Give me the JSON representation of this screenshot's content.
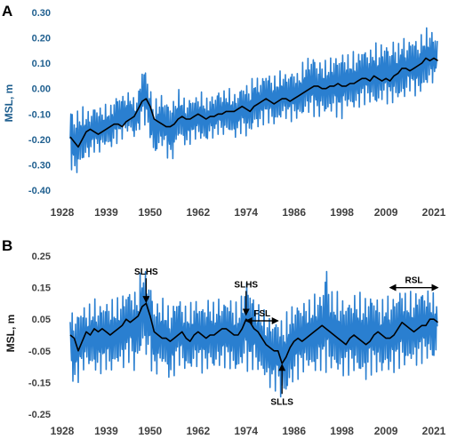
{
  "chart_data": [
    {
      "panel": "A",
      "type": "line",
      "title": "",
      "xlabel": "",
      "ylabel": "MSL, m",
      "xlim": [
        1928,
        2023
      ],
      "ylim": [
        -0.4,
        0.3
      ],
      "xticks": [
        "1928",
        "1939",
        "1950",
        "1962",
        "1974",
        "1986",
        "1998",
        "2009",
        "2021"
      ],
      "yticks": [
        "0.30",
        "0.20",
        "0.10",
        "0.00",
        "-0.10",
        "-0.20",
        "-0.30",
        "-0.40"
      ],
      "grid": false,
      "colors": {
        "monthly": "#2a7fd0",
        "smoothed": "#000000",
        "axis_text": "#1f5f8f"
      },
      "series": [
        {
          "role": "monthly",
          "x": [
            1930,
            1931,
            1932,
            1933,
            1934,
            1935,
            1936,
            1937,
            1938,
            1939,
            1940,
            1941,
            1942,
            1943,
            1944,
            1945,
            1946,
            1947,
            1948,
            1949,
            1950,
            1951,
            1952,
            1953,
            1954,
            1955,
            1956,
            1957,
            1958,
            1959,
            1960,
            1961,
            1962,
            1963,
            1964,
            1965,
            1966,
            1967,
            1968,
            1969,
            1970,
            1971,
            1972,
            1973,
            1974,
            1975,
            1976,
            1977,
            1978,
            1979,
            1980,
            1981,
            1982,
            1983,
            1984,
            1985,
            1986,
            1987,
            1988,
            1989,
            1990,
            1991,
            1992,
            1993,
            1994,
            1995,
            1996,
            1997,
            1998,
            1999,
            2000,
            2001,
            2002,
            2003,
            2004,
            2005,
            2006,
            2007,
            2008,
            2009,
            2010,
            2011,
            2012,
            2013,
            2014,
            2015,
            2016,
            2017,
            2018,
            2019,
            2020,
            2021,
            2022
          ],
          "min": [
            -0.3,
            -0.36,
            -0.33,
            -0.3,
            -0.28,
            -0.27,
            -0.25,
            -0.26,
            -0.24,
            -0.23,
            -0.24,
            -0.23,
            -0.21,
            -0.2,
            -0.18,
            -0.17,
            -0.2,
            -0.18,
            -0.13,
            -0.15,
            -0.2,
            -0.28,
            -0.25,
            -0.23,
            -0.26,
            -0.3,
            -0.27,
            -0.2,
            -0.21,
            -0.24,
            -0.22,
            -0.2,
            -0.2,
            -0.21,
            -0.22,
            -0.19,
            -0.2,
            -0.18,
            -0.19,
            -0.18,
            -0.18,
            -0.2,
            -0.19,
            -0.17,
            -0.19,
            -0.19,
            -0.15,
            -0.16,
            -0.15,
            -0.13,
            -0.14,
            -0.15,
            -0.14,
            -0.12,
            -0.12,
            -0.13,
            -0.13,
            -0.12,
            -0.12,
            -0.1,
            -0.1,
            -0.11,
            -0.12,
            -0.1,
            -0.11,
            -0.1,
            -0.1,
            -0.12,
            -0.12,
            -0.08,
            -0.08,
            -0.09,
            -0.08,
            -0.07,
            -0.06,
            -0.06,
            -0.07,
            -0.08,
            -0.05,
            -0.06,
            -0.06,
            -0.06,
            -0.05,
            -0.05,
            -0.04,
            -0.01,
            -0.03,
            -0.03,
            -0.02,
            0.0,
            0.02,
            0.02,
            0.03
          ],
          "max": [
            -0.06,
            -0.1,
            -0.08,
            -0.07,
            -0.08,
            -0.09,
            -0.06,
            -0.07,
            -0.07,
            -0.06,
            -0.07,
            -0.03,
            -0.02,
            -0.02,
            -0.02,
            -0.01,
            -0.04,
            -0.02,
            0.09,
            0.08,
            0.0,
            -0.05,
            -0.03,
            -0.02,
            -0.04,
            -0.05,
            -0.04,
            0.0,
            -0.02,
            -0.05,
            -0.03,
            -0.03,
            -0.02,
            -0.01,
            -0.04,
            -0.02,
            -0.03,
            0.0,
            -0.01,
            0.0,
            0.0,
            -0.02,
            -0.01,
            0.02,
            0.02,
            0.02,
            0.06,
            0.04,
            0.05,
            0.07,
            0.06,
            0.05,
            0.06,
            0.08,
            0.06,
            0.07,
            0.08,
            0.06,
            0.1,
            0.12,
            0.13,
            0.14,
            0.1,
            0.12,
            0.11,
            0.12,
            0.14,
            0.13,
            0.15,
            0.14,
            0.13,
            0.15,
            0.14,
            0.17,
            0.16,
            0.15,
            0.19,
            0.17,
            0.18,
            0.19,
            0.16,
            0.2,
            0.17,
            0.22,
            0.18,
            0.2,
            0.21,
            0.19,
            0.22,
            0.24,
            0.24,
            0.22,
            0.21
          ]
        },
        {
          "role": "smoothed",
          "x": [
            1930,
            1931,
            1932,
            1933,
            1934,
            1935,
            1936,
            1937,
            1938,
            1939,
            1940,
            1941,
            1942,
            1943,
            1944,
            1945,
            1946,
            1947,
            1948,
            1949,
            1950,
            1951,
            1952,
            1953,
            1954,
            1955,
            1956,
            1957,
            1958,
            1959,
            1960,
            1961,
            1962,
            1963,
            1964,
            1965,
            1966,
            1967,
            1968,
            1969,
            1970,
            1971,
            1972,
            1973,
            1974,
            1975,
            1976,
            1977,
            1978,
            1979,
            1980,
            1981,
            1982,
            1983,
            1984,
            1985,
            1986,
            1987,
            1988,
            1989,
            1990,
            1991,
            1992,
            1993,
            1994,
            1995,
            1996,
            1997,
            1998,
            1999,
            2000,
            2001,
            2002,
            2003,
            2004,
            2005,
            2006,
            2007,
            2008,
            2009,
            2010,
            2011,
            2012,
            2013,
            2014,
            2015,
            2016,
            2017,
            2018,
            2019,
            2020,
            2021,
            2022
          ],
          "values": [
            -0.19,
            -0.21,
            -0.23,
            -0.2,
            -0.17,
            -0.16,
            -0.17,
            -0.18,
            -0.17,
            -0.16,
            -0.15,
            -0.14,
            -0.14,
            -0.15,
            -0.13,
            -0.12,
            -0.11,
            -0.08,
            -0.05,
            -0.04,
            -0.07,
            -0.12,
            -0.13,
            -0.14,
            -0.15,
            -0.15,
            -0.14,
            -0.12,
            -0.11,
            -0.12,
            -0.12,
            -0.11,
            -0.1,
            -0.11,
            -0.12,
            -0.11,
            -0.11,
            -0.1,
            -0.1,
            -0.09,
            -0.09,
            -0.09,
            -0.08,
            -0.07,
            -0.08,
            -0.09,
            -0.07,
            -0.06,
            -0.05,
            -0.04,
            -0.05,
            -0.06,
            -0.05,
            -0.04,
            -0.04,
            -0.05,
            -0.04,
            -0.03,
            -0.02,
            -0.01,
            0.0,
            0.01,
            0.01,
            0.0,
            0.0,
            0.01,
            0.01,
            0.02,
            0.01,
            0.01,
            0.02,
            0.02,
            0.03,
            0.04,
            0.04,
            0.03,
            0.05,
            0.04,
            0.03,
            0.04,
            0.03,
            0.05,
            0.06,
            0.08,
            0.08,
            0.07,
            0.08,
            0.09,
            0.1,
            0.12,
            0.11,
            0.12,
            0.11
          ]
        }
      ]
    },
    {
      "panel": "B",
      "type": "line",
      "title": "",
      "xlabel": "",
      "ylabel": "MSL, m",
      "xlim": [
        1928,
        2023
      ],
      "ylim": [
        -0.25,
        0.25
      ],
      "xticks": [
        "1928",
        "1939",
        "1950",
        "1962",
        "1974",
        "1986",
        "1998",
        "2009",
        "2021"
      ],
      "yticks": [
        "0.25",
        "0.15",
        "0.05",
        "-0.05",
        "-0.15",
        "-0.25"
      ],
      "grid": false,
      "colors": {
        "monthly": "#2a7fd0",
        "smoothed": "#000000",
        "axis_text": "#404040"
      },
      "series": [
        {
          "role": "monthly",
          "x": [
            1930,
            1931,
            1932,
            1933,
            1934,
            1935,
            1936,
            1937,
            1938,
            1939,
            1940,
            1941,
            1942,
            1943,
            1944,
            1945,
            1946,
            1947,
            1948,
            1949,
            1950,
            1951,
            1952,
            1953,
            1954,
            1955,
            1956,
            1957,
            1958,
            1959,
            1960,
            1961,
            1962,
            1963,
            1964,
            1965,
            1966,
            1967,
            1968,
            1969,
            1970,
            1971,
            1972,
            1973,
            1974,
            1975,
            1976,
            1977,
            1978,
            1979,
            1980,
            1981,
            1982,
            1983,
            1984,
            1985,
            1986,
            1987,
            1988,
            1989,
            1990,
            1991,
            1992,
            1993,
            1994,
            1995,
            1996,
            1997,
            1998,
            1999,
            2000,
            2001,
            2002,
            2003,
            2004,
            2005,
            2006,
            2007,
            2008,
            2009,
            2010,
            2011,
            2012,
            2013,
            2014,
            2015,
            2016,
            2017,
            2018,
            2019,
            2020,
            2021,
            2022
          ],
          "min": [
            -0.1,
            -0.18,
            -0.15,
            -0.12,
            -0.1,
            -0.11,
            -0.12,
            -0.13,
            -0.12,
            -0.11,
            -0.13,
            -0.11,
            -0.1,
            -0.11,
            -0.1,
            -0.08,
            -0.12,
            -0.09,
            -0.05,
            -0.07,
            -0.1,
            -0.14,
            -0.12,
            -0.1,
            -0.12,
            -0.16,
            -0.13,
            -0.09,
            -0.11,
            -0.12,
            -0.12,
            -0.11,
            -0.1,
            -0.12,
            -0.12,
            -0.1,
            -0.12,
            -0.1,
            -0.11,
            -0.1,
            -0.11,
            -0.12,
            -0.13,
            -0.1,
            -0.11,
            -0.13,
            -0.1,
            -0.12,
            -0.13,
            -0.15,
            -0.17,
            -0.18,
            -0.17,
            -0.22,
            -0.2,
            -0.17,
            -0.15,
            -0.14,
            -0.12,
            -0.12,
            -0.11,
            -0.13,
            -0.12,
            -0.11,
            -0.12,
            -0.12,
            -0.11,
            -0.13,
            -0.14,
            -0.12,
            -0.13,
            -0.12,
            -0.13,
            -0.14,
            -0.15,
            -0.13,
            -0.12,
            -0.12,
            -0.13,
            -0.11,
            -0.13,
            -0.12,
            -0.11,
            -0.1,
            -0.11,
            -0.09,
            -0.1,
            -0.1,
            -0.09,
            -0.08,
            -0.08,
            -0.09,
            -0.07
          ],
          "max": [
            0.08,
            0.07,
            0.08,
            0.1,
            0.09,
            0.1,
            0.12,
            0.1,
            0.11,
            0.11,
            0.12,
            0.11,
            0.12,
            0.13,
            0.15,
            0.15,
            0.14,
            0.15,
            0.24,
            0.2,
            0.18,
            0.1,
            0.11,
            0.12,
            0.1,
            0.09,
            0.11,
            0.13,
            0.11,
            0.09,
            0.1,
            0.12,
            0.11,
            0.1,
            0.11,
            0.12,
            0.1,
            0.12,
            0.11,
            0.12,
            0.12,
            0.11,
            0.1,
            0.13,
            0.19,
            0.16,
            0.12,
            0.1,
            0.09,
            0.07,
            0.06,
            0.05,
            0.06,
            0.05,
            0.07,
            0.09,
            0.1,
            0.11,
            0.1,
            0.12,
            0.11,
            0.13,
            0.14,
            0.13,
            0.24,
            0.15,
            0.13,
            0.14,
            0.12,
            0.11,
            0.12,
            0.13,
            0.14,
            0.13,
            0.12,
            0.14,
            0.13,
            0.12,
            0.11,
            0.13,
            0.12,
            0.13,
            0.14,
            0.16,
            0.13,
            0.14,
            0.13,
            0.15,
            0.15,
            0.14,
            0.15,
            0.13,
            0.14
          ]
        },
        {
          "role": "smoothed",
          "x": [
            1930,
            1931,
            1932,
            1933,
            1934,
            1935,
            1936,
            1937,
            1938,
            1939,
            1940,
            1941,
            1942,
            1943,
            1944,
            1945,
            1946,
            1947,
            1948,
            1949,
            1950,
            1951,
            1952,
            1953,
            1954,
            1955,
            1956,
            1957,
            1958,
            1959,
            1960,
            1961,
            1962,
            1963,
            1964,
            1965,
            1966,
            1967,
            1968,
            1969,
            1970,
            1971,
            1972,
            1973,
            1974,
            1975,
            1976,
            1977,
            1978,
            1979,
            1980,
            1981,
            1982,
            1983,
            1984,
            1985,
            1986,
            1987,
            1988,
            1989,
            1990,
            1991,
            1992,
            1993,
            1994,
            1995,
            1996,
            1997,
            1998,
            1999,
            2000,
            2001,
            2002,
            2003,
            2004,
            2005,
            2006,
            2007,
            2008,
            2009,
            2010,
            2011,
            2012,
            2013,
            2014,
            2015,
            2016,
            2017,
            2018,
            2019,
            2020,
            2021,
            2022
          ],
          "values": [
            0.0,
            -0.01,
            -0.05,
            -0.02,
            0.01,
            0.0,
            0.02,
            0.01,
            0.02,
            0.01,
            0.0,
            0.01,
            0.02,
            0.03,
            0.05,
            0.04,
            0.05,
            0.06,
            0.09,
            0.1,
            0.06,
            0.01,
            0.0,
            -0.01,
            -0.01,
            -0.02,
            -0.01,
            0.0,
            0.01,
            -0.01,
            -0.02,
            0.0,
            0.01,
            0.0,
            -0.01,
            0.0,
            0.0,
            0.01,
            0.02,
            0.02,
            0.01,
            0.0,
            0.0,
            0.02,
            0.05,
            0.04,
            0.02,
            0.01,
            -0.01,
            -0.03,
            -0.04,
            -0.05,
            -0.05,
            -0.09,
            -0.07,
            -0.04,
            -0.02,
            -0.01,
            -0.02,
            -0.01,
            0.0,
            0.01,
            0.02,
            0.03,
            0.02,
            0.01,
            0.0,
            -0.01,
            -0.02,
            -0.03,
            -0.01,
            0.0,
            -0.01,
            -0.02,
            -0.03,
            -0.02,
            0.0,
            0.01,
            0.0,
            -0.01,
            -0.01,
            0.0,
            0.02,
            0.04,
            0.03,
            0.02,
            0.01,
            0.02,
            0.03,
            0.03,
            0.05,
            0.05,
            0.04
          ]
        }
      ],
      "annotations": [
        {
          "text": "SLHS",
          "x": 1949,
          "y": 0.095,
          "kind": "arrow-down"
        },
        {
          "text": "SLHS",
          "x": 1974,
          "y": 0.055,
          "kind": "arrow-down"
        },
        {
          "text": "FSL",
          "x_range": [
            1974,
            1982
          ],
          "y": 0.045,
          "kind": "double-arrow"
        },
        {
          "text": "SLLS",
          "x": 1983,
          "y": -0.085,
          "kind": "arrow-up"
        },
        {
          "text": "RSL",
          "x_range": [
            2010,
            2022
          ],
          "y": 0.15,
          "kind": "double-arrow"
        }
      ]
    }
  ],
  "panels": {
    "a": {
      "letter": "A"
    },
    "b": {
      "letter": "B"
    }
  }
}
